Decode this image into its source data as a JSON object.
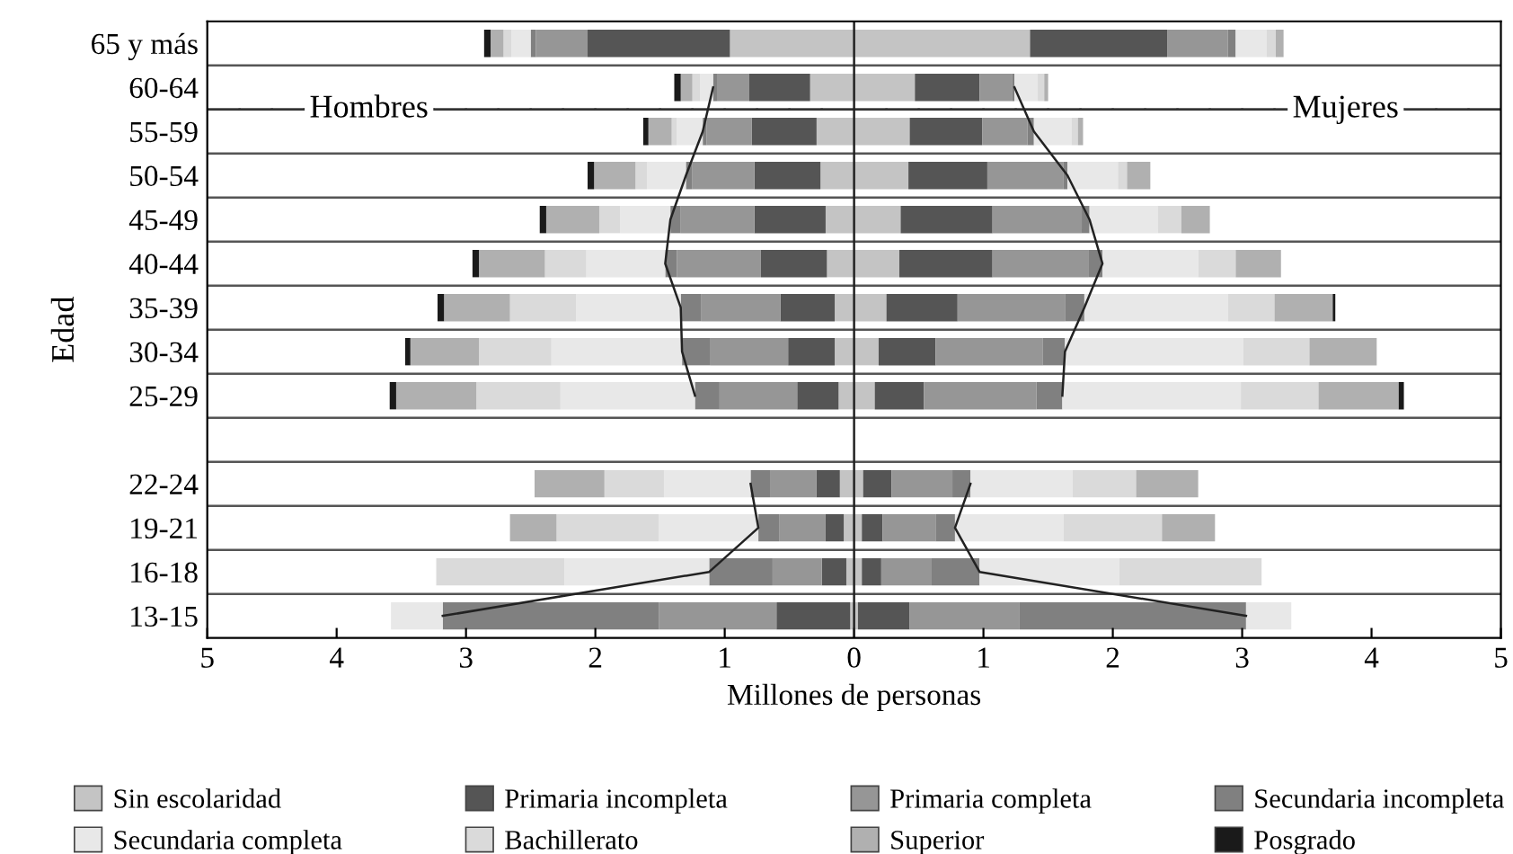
{
  "chart_data": {
    "type": "bar",
    "orientation": "horizontal",
    "stacked": true,
    "ylabel": "Edad",
    "xlabel": "Millones de personas",
    "categories": [
      "65 y más",
      "60-64",
      "55-59",
      "50-54",
      "45-49",
      "40-44",
      "35-39",
      "30-34",
      "25-29",
      null,
      "22-24",
      "19-21",
      "16-18",
      "13-15"
    ],
    "xlim": [
      -5,
      5
    ],
    "xticks": [
      {
        "value": -5,
        "label": "5"
      },
      {
        "value": -4,
        "label": "4"
      },
      {
        "value": -3,
        "label": "3"
      },
      {
        "value": -2,
        "label": "2"
      },
      {
        "value": -1,
        "label": "1"
      },
      0,
      1,
      2,
      3,
      4,
      5
    ],
    "grid": "y",
    "legend": "bottom",
    "annotations": [
      "Hombres",
      "Mujeres"
    ],
    "series": [
      {
        "color": "#c4c4c4",
        "values": [
          -0.96,
          -0.34,
          -0.29,
          -0.26,
          -0.22,
          -0.21,
          -0.15,
          -0.15,
          -0.12,
          null,
          -0.11,
          -0.08,
          -0.06,
          -0.03
        ]
      },
      {
        "color": "#555555",
        "values": [
          -1.1,
          -0.47,
          -0.5,
          -0.51,
          -0.55,
          -0.51,
          -0.42,
          -0.36,
          -0.32,
          null,
          -0.18,
          -0.14,
          -0.19,
          -0.57
        ]
      },
      {
        "color": "#969696",
        "values": [
          -0.4,
          -0.25,
          -0.35,
          -0.48,
          -0.57,
          -0.65,
          -0.61,
          -0.6,
          -0.6,
          null,
          -0.36,
          -0.36,
          -0.38,
          -0.91
        ]
      },
      {
        "color": "#808080",
        "values": [
          -0.04,
          -0.03,
          -0.03,
          -0.05,
          -0.08,
          -0.09,
          -0.16,
          -0.22,
          -0.19,
          null,
          -0.15,
          -0.16,
          -0.49,
          -1.67
        ]
      },
      {
        "color": "#e8e8e8",
        "values": [
          -0.15,
          -0.1,
          -0.2,
          -0.3,
          -0.39,
          -0.61,
          -0.81,
          -1.01,
          -1.04,
          null,
          -0.67,
          -0.77,
          -1.12,
          -0.4
        ]
      },
      {
        "color": "#dadada",
        "values": [
          -0.06,
          -0.06,
          -0.04,
          -0.09,
          -0.16,
          -0.32,
          -0.51,
          -0.56,
          -0.65,
          null,
          -0.46,
          -0.79,
          -0.99,
          null
        ]
      },
      {
        "color": "#b0b0b0",
        "values": [
          -0.1,
          -0.09,
          -0.18,
          -0.32,
          -0.41,
          -0.51,
          -0.51,
          -0.53,
          -0.62,
          null,
          -0.54,
          -0.36,
          null,
          null
        ]
      },
      {
        "color": "#1a1a1a",
        "values": [
          -0.05,
          -0.05,
          -0.04,
          -0.05,
          -0.05,
          -0.05,
          -0.05,
          -0.04,
          -0.05,
          null,
          null,
          null,
          null,
          null
        ]
      },
      {
        "name": "Sin escolaridad",
        "color": "#c4c4c4",
        "values": [
          1.36,
          0.47,
          0.43,
          0.42,
          0.36,
          0.35,
          0.25,
          0.19,
          0.16,
          null,
          0.07,
          0.06,
          0.06,
          0.03
        ]
      },
      {
        "name": "Primaria incompleta",
        "color": "#555555",
        "values": [
          1.06,
          0.5,
          0.56,
          0.61,
          0.71,
          0.72,
          0.55,
          0.44,
          0.38,
          null,
          0.22,
          0.16,
          0.15,
          0.4
        ]
      },
      {
        "name": "Primaria completa",
        "color": "#969696",
        "values": [
          0.47,
          0.25,
          0.35,
          0.59,
          0.69,
          0.74,
          0.83,
          0.83,
          0.87,
          null,
          0.47,
          0.41,
          0.39,
          0.85
        ]
      },
      {
        "name": "Secundaria incompleta",
        "color": "#808080",
        "values": [
          0.06,
          0.02,
          0.05,
          0.03,
          0.06,
          0.11,
          0.15,
          0.17,
          0.2,
          null,
          0.14,
          0.15,
          0.37,
          1.75
        ]
      },
      {
        "name": "Secundaria completa",
        "color": "#e8e8e8",
        "values": [
          0.24,
          0.18,
          0.29,
          0.39,
          0.53,
          0.74,
          1.11,
          1.38,
          1.38,
          null,
          0.79,
          0.84,
          1.08,
          0.35
        ]
      },
      {
        "name": "Bachillerato",
        "color": "#dadada",
        "values": [
          0.07,
          0.05,
          0.05,
          0.07,
          0.18,
          0.29,
          0.36,
          0.51,
          0.6,
          null,
          0.49,
          0.76,
          1.1,
          null
        ]
      },
      {
        "name": "Superior",
        "color": "#b0b0b0",
        "values": [
          0.06,
          0.03,
          0.04,
          0.18,
          0.22,
          0.35,
          0.45,
          0.52,
          0.62,
          null,
          0.48,
          0.41,
          null,
          null
        ]
      },
      {
        "name": "Posgrado",
        "color": "#1a1a1a",
        "values": [
          null,
          null,
          null,
          null,
          null,
          null,
          0.02,
          null,
          0.04,
          null,
          null,
          null,
          null,
          null
        ]
      },
      {
        "type": "line",
        "color": "#222222",
        "values": [
          null,
          -1.09,
          -1.17,
          -1.3,
          -1.42,
          -1.46,
          -1.34,
          -1.33,
          -1.23,
          null,
          -0.8,
          -0.74,
          -1.12,
          -3.18
        ]
      },
      {
        "type": "line",
        "color": "#222222",
        "values": [
          null,
          1.24,
          1.39,
          1.65,
          1.82,
          1.92,
          1.78,
          1.63,
          1.61,
          null,
          0.9,
          0.78,
          0.97,
          3.03
        ]
      }
    ]
  }
}
